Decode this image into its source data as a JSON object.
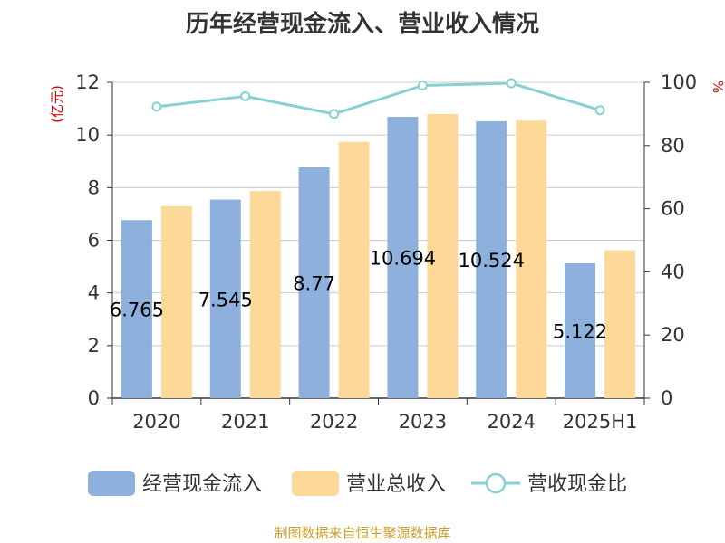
{
  "chart_data": {
    "type": "bar",
    "title": "历年经营现金流入、营业收入情况",
    "source": "制图数据来自恒生聚源数据库",
    "categories": [
      "2020",
      "2021",
      "2022",
      "2023",
      "2024",
      "2025H1"
    ],
    "left_axis": {
      "unit": "(亿元)",
      "ticks": [
        "0",
        "2",
        "4",
        "6",
        "8",
        "10",
        "12"
      ],
      "ylim": [
        0,
        12
      ]
    },
    "right_axis": {
      "unit": "%",
      "ticks": [
        "0",
        "20",
        "40",
        "60",
        "80",
        "100"
      ],
      "ylim": [
        0,
        100
      ]
    },
    "series": [
      {
        "name": "经营现金流入",
        "type": "bar",
        "axis": "left",
        "color": "#8eb0dc",
        "values": [
          6.765,
          7.545,
          8.77,
          10.694,
          10.524,
          5.122
        ],
        "labels": [
          "6.765",
          "7.545",
          "8.77",
          "10.694",
          "10.524",
          "5.122"
        ]
      },
      {
        "name": "营业总收入",
        "type": "bar",
        "axis": "left",
        "color": "#fdd999",
        "values": [
          7.3,
          7.87,
          9.74,
          10.8,
          10.55,
          5.62
        ]
      },
      {
        "name": "营收现金比",
        "type": "line",
        "axis": "right",
        "color": "#86d0d6",
        "values": [
          92.3,
          95.6,
          90.0,
          99.0,
          99.7,
          91.2
        ]
      }
    ],
    "grid": true,
    "legend_position": "bottom"
  }
}
